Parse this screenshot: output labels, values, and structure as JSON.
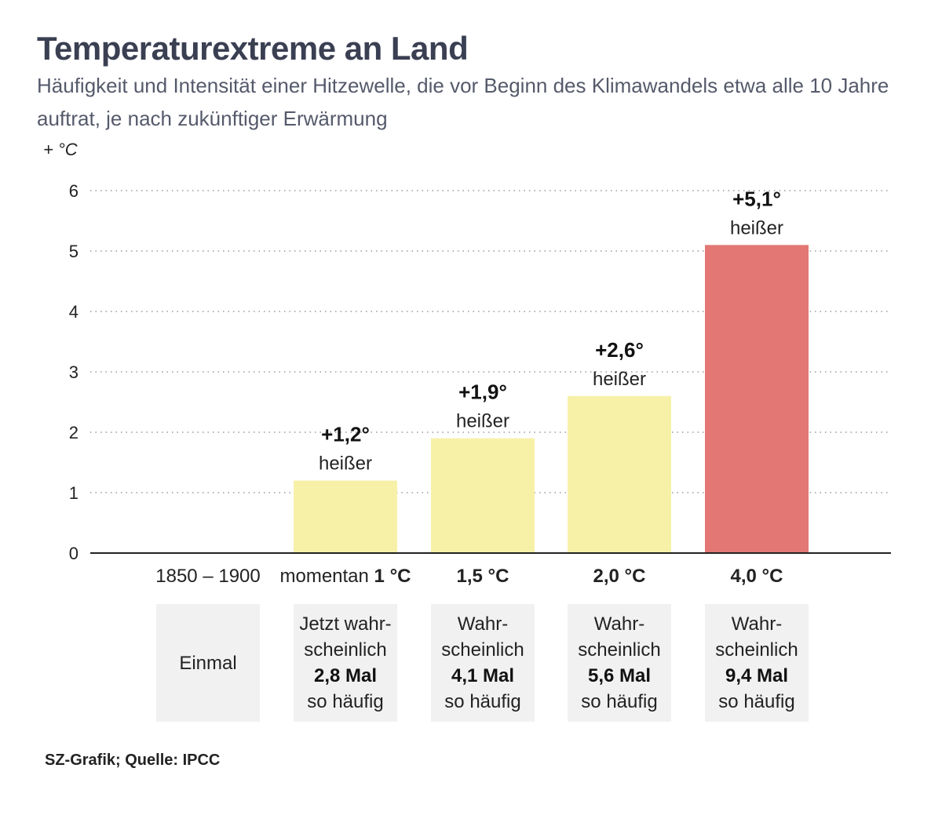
{
  "title": "Temperaturextreme an Land",
  "subtitle": "Häufigkeit und Intensität einer Hitzewelle, die vor Beginn des Klimawandels etwa alle 10 Jahre auftrat, je nach zukünftiger Erwärmung",
  "colors": {
    "yellow": "#f7f1a8",
    "red": "#e27773",
    "axis": "#222222",
    "grid": "#9a9a9a",
    "box": "#f1f1f1"
  },
  "chart_data": {
    "type": "bar",
    "ylabel": "+ °C",
    "ylim": [
      0,
      6
    ],
    "yticks": [
      "0",
      "1",
      "2",
      "3",
      "4",
      "5",
      "6"
    ],
    "categories": [
      {
        "prefix": "1850 – 1900",
        "bold": ""
      },
      {
        "prefix": "momentan ",
        "bold": "1 °C"
      },
      {
        "prefix": "",
        "bold": "1,5 °C"
      },
      {
        "prefix": "",
        "bold": "2,0 °C"
      },
      {
        "prefix": "",
        "bold": "4,0 °C"
      }
    ],
    "values": [
      0,
      1.2,
      1.9,
      2.6,
      5.1
    ],
    "value_labels": [
      "",
      "+1,2°",
      "+1,9°",
      "+2,6°",
      "+5,1°"
    ],
    "value_sublabels": [
      "",
      "heißer",
      "heißer",
      "heißer",
      "heißer"
    ],
    "bar_colors": [
      "#f7f1a8",
      "#f7f1a8",
      "#f7f1a8",
      "#f7f1a8",
      "#e27773"
    ]
  },
  "frequency": [
    {
      "line1": "Einmal",
      "line2": "",
      "bold": "",
      "line4": ""
    },
    {
      "line1": "Jetzt wahr-",
      "line2": "scheinlich",
      "bold": "2,8 Mal",
      "line4": "so häufig"
    },
    {
      "line1": "Wahr-",
      "line2": "scheinlich",
      "bold": "4,1 Mal",
      "line4": "so häufig"
    },
    {
      "line1": "Wahr-",
      "line2": "scheinlich",
      "bold": "5,6 Mal",
      "line4": "so häufig"
    },
    {
      "line1": "Wahr-",
      "line2": "scheinlich",
      "bold": "9,4 Mal",
      "line4": "so häufig"
    }
  ],
  "source": "SZ-Grafik; Quelle: IPCC"
}
